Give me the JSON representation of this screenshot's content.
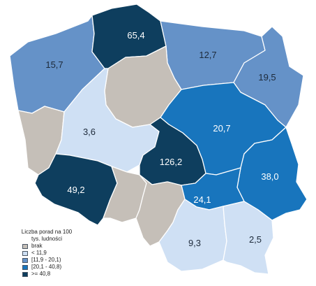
{
  "map": {
    "regions": [
      {
        "id": "pomorskie",
        "value": "65,4",
        "color": "#0e3e5e",
        "text_color": "#ffffff"
      },
      {
        "id": "zachodniopomorskie",
        "value": "15,7",
        "color": "#6592c8",
        "text_color": "#1d2a3a"
      },
      {
        "id": "warminsko-mazurskie",
        "value": "12,7",
        "color": "#6592c8",
        "text_color": "#1d2a3a"
      },
      {
        "id": "podlaskie",
        "value": "19,5",
        "color": "#6592c8",
        "text_color": "#1d2a3a"
      },
      {
        "id": "kujawsko-pomorskie",
        "value": "",
        "color": "#c5bfb8",
        "text_color": "#1d2a3a"
      },
      {
        "id": "lubuskie",
        "value": "",
        "color": "#c5bfb8",
        "text_color": "#1d2a3a"
      },
      {
        "id": "wielkopolskie",
        "value": "3,6",
        "color": "#cfe0f4",
        "text_color": "#1d2a3a"
      },
      {
        "id": "mazowieckie",
        "value": "20,7",
        "color": "#1875bd",
        "text_color": "#ffffff"
      },
      {
        "id": "lodzkie",
        "value": "126,2",
        "color": "#0e3e5e",
        "text_color": "#ffffff"
      },
      {
        "id": "lubelskie",
        "value": "38,0",
        "color": "#1875bd",
        "text_color": "#ffffff"
      },
      {
        "id": "dolnoslaskie",
        "value": "49,2",
        "color": "#0e3e5e",
        "text_color": "#ffffff"
      },
      {
        "id": "swietokrzyskie",
        "value": "24,1",
        "color": "#1875bd",
        "text_color": "#ffffff"
      },
      {
        "id": "opolskie",
        "value": "",
        "color": "#c5bfb8",
        "text_color": "#1d2a3a"
      },
      {
        "id": "slaskie",
        "value": "",
        "color": "#c5bfb8",
        "text_color": "#1d2a3a"
      },
      {
        "id": "malopolskie",
        "value": "9,3",
        "color": "#cfe0f4",
        "text_color": "#1d2a3a"
      },
      {
        "id": "podkarpackie",
        "value": "2,5",
        "color": "#cfe0f4",
        "text_color": "#1d2a3a"
      }
    ]
  },
  "legend": {
    "title_line1": "Liczba porad na 100",
    "title_line2": "tys. ludności",
    "items": [
      {
        "label": "brak",
        "color": "#c5bfb8"
      },
      {
        "label": "< 11,9",
        "color": "#cfe0f4"
      },
      {
        "label": "[11,9 - 20,1)",
        "color": "#6592c8"
      },
      {
        "label": "[20,1 - 40,8)",
        "color": "#1875bd"
      },
      {
        "label": ">= 40,8",
        "color": "#0e3e5e"
      }
    ]
  }
}
